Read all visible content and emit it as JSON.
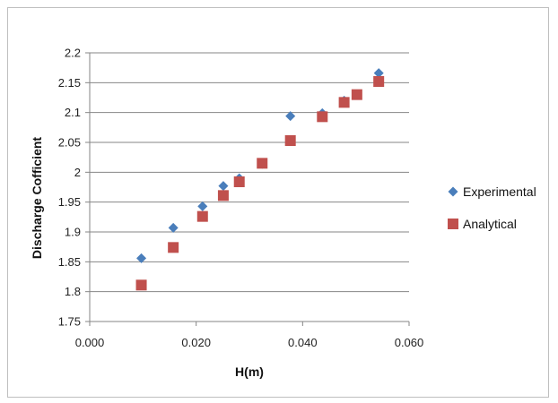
{
  "chart_data": {
    "type": "scatter",
    "title": "",
    "xlabel": "H(m)",
    "ylabel": "Discharge  Cofficient",
    "xlim": [
      0.0,
      0.06
    ],
    "ylim": [
      1.75,
      2.2
    ],
    "x_ticks": [
      "0.000",
      "0.020",
      "0.040",
      "0.060"
    ],
    "x_tick_values": [
      0.0,
      0.02,
      0.04,
      0.06
    ],
    "y_ticks": [
      "1.75",
      "1.8",
      "1.85",
      "1.9",
      "1.95",
      "2",
      "2.05",
      "2.1",
      "2.15",
      "2.2"
    ],
    "y_tick_values": [
      1.75,
      1.8,
      1.85,
      1.9,
      1.95,
      2.0,
      2.05,
      2.1,
      2.15,
      2.2
    ],
    "grid": "horizontal",
    "legend_position": "right",
    "series": [
      {
        "name": "Experimental",
        "marker": "diamond",
        "color": "#4a7ebb",
        "x": [
          0.0097,
          0.0157,
          0.0212,
          0.0251,
          0.0281,
          0.0324,
          0.0377,
          0.0437,
          0.0478,
          0.0502,
          0.0543
        ],
        "y": [
          1.856,
          1.907,
          1.943,
          1.977,
          1.99,
          2.014,
          2.094,
          2.099,
          2.12,
          2.13,
          2.166
        ]
      },
      {
        "name": "Analytical",
        "marker": "square",
        "color": "#c0504d",
        "x": [
          0.0097,
          0.0157,
          0.0212,
          0.0251,
          0.0281,
          0.0324,
          0.0377,
          0.0437,
          0.0478,
          0.0502,
          0.0543
        ],
        "y": [
          1.811,
          1.874,
          1.926,
          1.961,
          1.984,
          2.015,
          2.053,
          2.093,
          2.117,
          2.13,
          2.152
        ]
      }
    ]
  }
}
